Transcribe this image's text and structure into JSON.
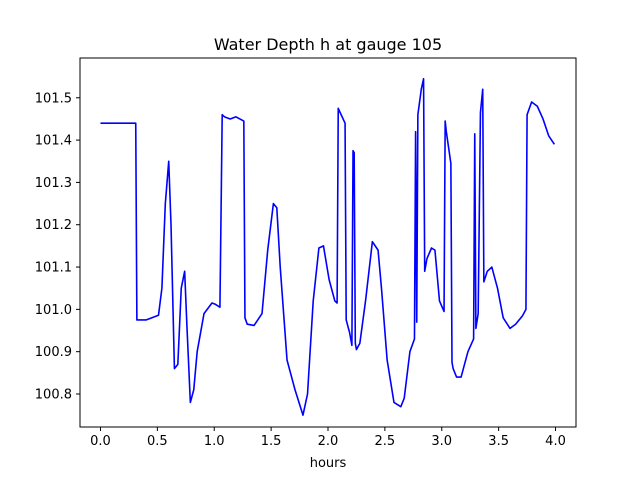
{
  "chart_data": {
    "type": "line",
    "title": "Water Depth h at gauge 105",
    "xlabel": "hours",
    "ylabel": "",
    "xlim": [
      -0.18,
      4.18
    ],
    "ylim": [
      100.722,
      101.594
    ],
    "xticks": [
      0.0,
      0.5,
      1.0,
      1.5,
      2.0,
      2.5,
      3.0,
      3.5,
      4.0
    ],
    "xtick_labels": [
      "0.0",
      "0.5",
      "1.0",
      "1.5",
      "2.0",
      "2.5",
      "3.0",
      "3.5",
      "4.0"
    ],
    "yticks": [
      100.8,
      100.9,
      101.0,
      101.1,
      101.2,
      101.3,
      101.4,
      101.5
    ],
    "ytick_labels": [
      "100.8",
      "100.9",
      "101.0",
      "101.1",
      "101.2",
      "101.3",
      "101.4",
      "101.5"
    ],
    "grid": false,
    "series": [
      {
        "color": "#0000ff",
        "x": [
          0.0,
          0.31,
          0.32,
          0.4,
          0.51,
          0.54,
          0.57,
          0.6,
          0.62,
          0.65,
          0.68,
          0.71,
          0.74,
          0.76,
          0.79,
          0.82,
          0.85,
          0.91,
          0.98,
          1.01,
          1.05,
          1.07,
          1.09,
          1.14,
          1.19,
          1.26,
          1.27,
          1.29,
          1.35,
          1.42,
          1.47,
          1.52,
          1.55,
          1.58,
          1.64,
          1.71,
          1.78,
          1.82,
          1.87,
          1.92,
          1.96,
          2.01,
          2.06,
          2.08,
          2.09,
          2.15,
          2.16,
          2.19,
          2.21,
          2.22,
          2.23,
          2.24,
          2.25,
          2.28,
          2.33,
          2.39,
          2.44,
          2.47,
          2.52,
          2.58,
          2.64,
          2.67,
          2.72,
          2.76,
          2.77,
          2.78,
          2.79,
          2.8,
          2.82,
          2.84,
          2.85,
          2.87,
          2.91,
          2.94,
          2.98,
          3.02,
          3.03,
          3.04,
          3.08,
          3.09,
          3.1,
          3.13,
          3.17,
          3.23,
          3.28,
          3.29,
          3.3,
          3.32,
          3.34,
          3.36,
          3.37,
          3.4,
          3.44,
          3.49,
          3.54,
          3.6,
          3.65,
          3.71,
          3.74,
          3.75,
          3.79,
          3.84,
          3.89,
          3.94,
          3.99
        ],
        "y": [
          101.44,
          101.44,
          100.975,
          100.975,
          100.986,
          101.05,
          101.25,
          101.35,
          101.2,
          100.86,
          100.87,
          101.05,
          101.09,
          100.96,
          100.78,
          100.81,
          100.9,
          100.99,
          101.015,
          101.012,
          101.005,
          101.46,
          101.455,
          101.45,
          101.455,
          101.445,
          100.98,
          100.965,
          100.962,
          100.99,
          101.14,
          101.25,
          101.24,
          101.1,
          100.88,
          100.81,
          100.75,
          100.8,
          101.02,
          101.145,
          101.15,
          101.07,
          101.02,
          101.015,
          101.475,
          101.44,
          100.975,
          100.945,
          100.915,
          101.375,
          101.37,
          100.92,
          100.905,
          100.92,
          101.02,
          101.16,
          101.14,
          101.05,
          100.88,
          100.78,
          100.77,
          100.79,
          100.9,
          100.93,
          101.42,
          100.97,
          101.46,
          101.48,
          101.52,
          101.545,
          101.09,
          101.12,
          101.145,
          101.14,
          101.02,
          100.995,
          101.445,
          101.42,
          101.345,
          100.875,
          100.86,
          100.84,
          100.84,
          100.9,
          100.93,
          101.415,
          100.955,
          100.99,
          101.465,
          101.52,
          101.065,
          101.09,
          101.1,
          101.05,
          100.98,
          100.955,
          100.965,
          100.985,
          101.0,
          101.46,
          101.49,
          101.48,
          101.45,
          101.41,
          101.39
        ]
      }
    ]
  }
}
